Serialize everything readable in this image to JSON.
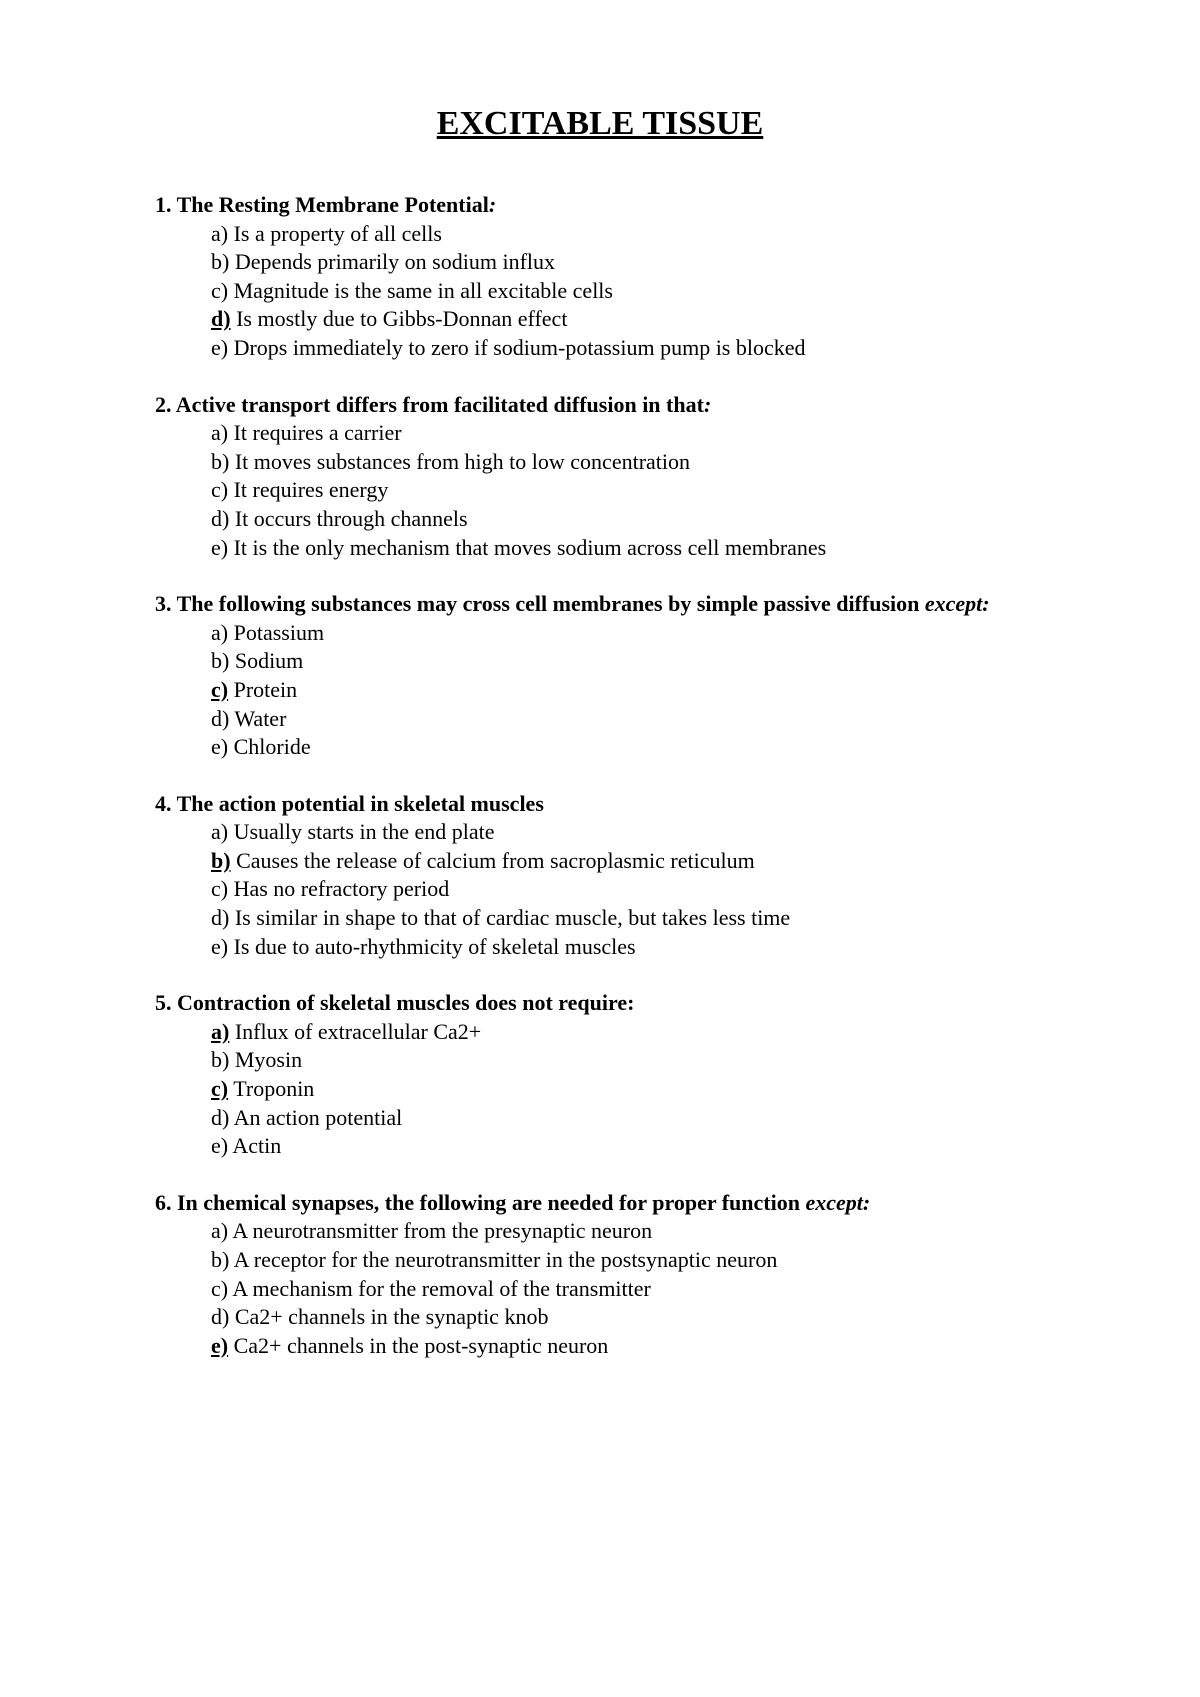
{
  "title": "EXCITABLE TISSUE",
  "questions": [
    {
      "number": "1.",
      "stem": "The Resting Membrane Potential",
      "suffix": ":",
      "suffix_italic": true,
      "options": [
        {
          "letter": "a)",
          "text": "Is a property of all cells",
          "highlighted": false
        },
        {
          "letter": "b)",
          "text": "Depends primarily on sodium influx",
          "highlighted": false
        },
        {
          "letter": "c)",
          "text": "Magnitude is the same in all excitable cells",
          "highlighted": false
        },
        {
          "letter": "d)",
          "text": "Is mostly due to Gibbs-Donnan effect",
          "highlighted": true
        },
        {
          "letter": "e)",
          "text": "Drops immediately to zero if sodium-potassium pump is blocked",
          "highlighted": false
        }
      ]
    },
    {
      "number": "2.",
      "stem": "Active transport differs from facilitated diffusion in that",
      "suffix": ":",
      "suffix_italic": true,
      "options": [
        {
          "letter": "a)",
          "text": "It requires a carrier",
          "highlighted": false
        },
        {
          "letter": "b)",
          "text": "It moves substances from high to low concentration",
          "highlighted": false
        },
        {
          "letter": "c)",
          "text": "It requires energy",
          "highlighted": false
        },
        {
          "letter": "d)",
          "text": "It occurs through channels",
          "highlighted": false
        },
        {
          "letter": "e)",
          "text": "It is the only mechanism that moves sodium across cell membranes",
          "highlighted": false
        }
      ]
    },
    {
      "number": "3.",
      "stem": "The following substances may cross cell membranes by simple passive diffusion ",
      "suffix": "except:",
      "suffix_italic": true,
      "options": [
        {
          "letter": "a)",
          "text": "Potassium",
          "highlighted": false
        },
        {
          "letter": "b)",
          "text": "Sodium",
          "highlighted": false
        },
        {
          "letter": "c)",
          "text": "Protein",
          "highlighted": true
        },
        {
          "letter": "d)",
          "text": "Water",
          "highlighted": false
        },
        {
          "letter": "e)",
          "text": "Chloride",
          "highlighted": false
        }
      ]
    },
    {
      "number": "4.",
      "stem": "The action potential in skeletal muscles",
      "suffix": "",
      "suffix_italic": false,
      "options": [
        {
          "letter": "a)",
          "text": "Usually starts in the end plate",
          "highlighted": false
        },
        {
          "letter": "b)",
          "text": "Causes the release of calcium from sacroplasmic reticulum",
          "highlighted": true
        },
        {
          "letter": "c)",
          "text": "Has no refractory period",
          "highlighted": false
        },
        {
          "letter": "d)",
          "text": "Is similar in shape to that of cardiac muscle, but takes less time",
          "highlighted": false
        },
        {
          "letter": "e)",
          "text": "Is due to auto-rhythmicity of skeletal muscles",
          "highlighted": false
        }
      ]
    },
    {
      "number": " 5.",
      "stem": "Contraction of skeletal muscles does not require:",
      "suffix": "",
      "suffix_italic": false,
      "options": [
        {
          "letter": "a)",
          "text": "Influx of extracellular Ca2+",
          "highlighted": true
        },
        {
          "letter": "b)",
          "text": "Myosin",
          "highlighted": false
        },
        {
          "letter": "c)",
          "text": "Troponin",
          "highlighted": true
        },
        {
          "letter": "d)",
          "text": "An action potential",
          "highlighted": false
        },
        {
          "letter": "e)",
          "text": "Actin",
          "highlighted": false
        }
      ]
    },
    {
      "number": "6.",
      "stem": "In chemical synapses, the following are needed for proper function ",
      "suffix": "except:",
      "suffix_italic": true,
      "options": [
        {
          "letter": "a)",
          "text": "A neurotransmitter from the presynaptic neuron",
          "highlighted": false
        },
        {
          "letter": "b)",
          "text": "A receptor for the neurotransmitter in the postsynaptic neuron",
          "highlighted": false
        },
        {
          "letter": "c)",
          "text": "A mechanism for the removal of the transmitter",
          "highlighted": false
        },
        {
          "letter": "d)",
          "text": "Ca2+ channels in the synaptic knob",
          "highlighted": false
        },
        {
          "letter": "e)",
          "text": "Ca2+ channels in the post-synaptic neuron",
          "highlighted": true
        }
      ]
    }
  ]
}
